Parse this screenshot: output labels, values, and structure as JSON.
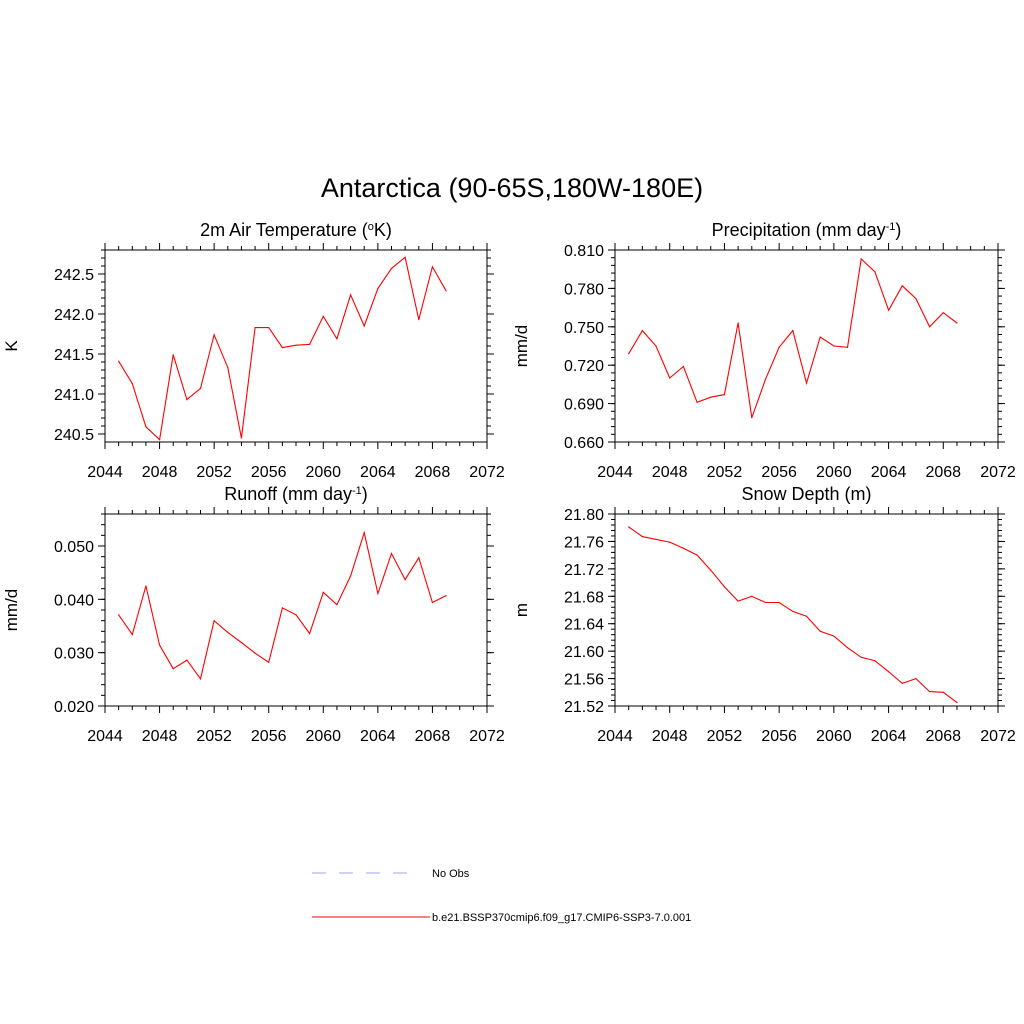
{
  "figure": {
    "title": "Antarctica (90-65S,180W-180E)"
  },
  "legend": {
    "entries": [
      {
        "label": "No Obs",
        "color": "#b4b4ff",
        "style": "dashed"
      },
      {
        "label": "b.e21.BSSP370cmip6.f09_g17.CMIP6-SSP3-7.0.001",
        "color": "#ff0000",
        "style": "solid"
      }
    ]
  },
  "chart_data": [
    {
      "type": "line",
      "title": "2m Air Temperature (oK)",
      "title_parts": {
        "pre": "2m Air Temperature (",
        "sup": "o",
        "post": "K)"
      },
      "xlabel": "",
      "ylabel": "K",
      "xlim": [
        2044,
        2072
      ],
      "ylim": [
        240.4,
        242.8
      ],
      "x_ticks": [
        2044,
        2048,
        2052,
        2056,
        2060,
        2064,
        2068,
        2072
      ],
      "y_ticks": [
        "240.5",
        "241.0",
        "241.5",
        "242.0",
        "242.5"
      ],
      "grid": false,
      "series": [
        {
          "color": "#ff0000",
          "x": [
            2045,
            2046,
            2047,
            2048,
            2049,
            2050,
            2051,
            2052,
            2053,
            2054,
            2055,
            2056,
            2057,
            2058,
            2059,
            2060,
            2061,
            2062,
            2063,
            2064,
            2065,
            2066,
            2067,
            2068,
            2069
          ],
          "values": [
            241.41,
            241.13,
            240.59,
            240.43,
            241.49,
            240.93,
            241.07,
            241.74,
            241.33,
            240.45,
            241.83,
            241.83,
            241.58,
            241.61,
            241.62,
            241.97,
            241.69,
            242.24,
            241.85,
            242.32,
            242.57,
            242.71,
            241.93,
            242.59,
            242.29
          ]
        }
      ]
    },
    {
      "type": "line",
      "title": "Precipitation (mm day-1)",
      "title_parts": {
        "pre": "Precipitation (mm day",
        "sup": "-1",
        "post": ")"
      },
      "xlabel": "",
      "ylabel": "mm/d",
      "xlim": [
        2044,
        2072
      ],
      "ylim": [
        0.66,
        0.81
      ],
      "x_ticks": [
        2044,
        2048,
        2052,
        2056,
        2060,
        2064,
        2068,
        2072
      ],
      "y_ticks": [
        "0.660",
        "0.690",
        "0.720",
        "0.750",
        "0.780",
        "0.810"
      ],
      "grid": false,
      "series": [
        {
          "color": "#ff0000",
          "x": [
            2045,
            2046,
            2047,
            2048,
            2049,
            2050,
            2051,
            2052,
            2053,
            2054,
            2055,
            2056,
            2057,
            2058,
            2059,
            2060,
            2061,
            2062,
            2063,
            2064,
            2065,
            2066,
            2067,
            2068,
            2069
          ],
          "values": [
            0.729,
            0.747,
            0.735,
            0.71,
            0.719,
            0.691,
            0.695,
            0.697,
            0.753,
            0.679,
            0.709,
            0.734,
            0.747,
            0.706,
            0.742,
            0.735,
            0.734,
            0.803,
            0.793,
            0.763,
            0.782,
            0.772,
            0.75,
            0.761,
            0.753
          ]
        }
      ]
    },
    {
      "type": "line",
      "title": "Runoff (mm day-1)",
      "title_parts": {
        "pre": "Runoff (mm day",
        "sup": "-1",
        "post": ")"
      },
      "xlabel": "",
      "ylabel": "mm/d",
      "xlim": [
        2044,
        2072
      ],
      "ylim": [
        0.02,
        0.056
      ],
      "x_ticks": [
        2044,
        2048,
        2052,
        2056,
        2060,
        2064,
        2068,
        2072
      ],
      "y_ticks": [
        "0.020",
        "0.030",
        "0.040",
        "0.050"
      ],
      "grid": false,
      "series": [
        {
          "color": "#ff0000",
          "x": [
            2045,
            2046,
            2047,
            2048,
            2049,
            2050,
            2051,
            2052,
            2053,
            2054,
            2055,
            2056,
            2057,
            2058,
            2059,
            2060,
            2061,
            2062,
            2063,
            2064,
            2065,
            2066,
            2067,
            2068,
            2069
          ],
          "values": [
            0.0371,
            0.0334,
            0.0425,
            0.0314,
            0.027,
            0.0286,
            0.0251,
            0.036,
            0.0338,
            0.0319,
            0.0299,
            0.0282,
            0.0384,
            0.0371,
            0.0336,
            0.0413,
            0.039,
            0.0444,
            0.0525,
            0.0411,
            0.0486,
            0.0437,
            0.0478,
            0.0394,
            0.0407
          ]
        }
      ]
    },
    {
      "type": "line",
      "title": "Snow Depth (m)",
      "xlabel": "",
      "ylabel": "m",
      "xlim": [
        2044,
        2072
      ],
      "ylim": [
        21.52,
        21.8
      ],
      "x_ticks": [
        2044,
        2048,
        2052,
        2056,
        2060,
        2064,
        2068,
        2072
      ],
      "y_ticks": [
        "21.52",
        "21.56",
        "21.60",
        "21.64",
        "21.68",
        "21.72",
        "21.76",
        "21.80"
      ],
      "grid": false,
      "series": [
        {
          "color": "#ff0000",
          "x": [
            2045,
            2046,
            2047,
            2048,
            2049,
            2050,
            2051,
            2052,
            2053,
            2054,
            2055,
            2056,
            2057,
            2058,
            2059,
            2060,
            2061,
            2062,
            2063,
            2064,
            2065,
            2066,
            2067,
            2068,
            2069
          ],
          "values": [
            21.781,
            21.767,
            21.763,
            21.759,
            21.75,
            21.74,
            21.718,
            21.694,
            21.673,
            21.68,
            21.671,
            21.671,
            21.658,
            21.651,
            21.629,
            21.622,
            21.605,
            21.591,
            21.586,
            21.57,
            21.553,
            21.56,
            21.541,
            21.54,
            21.525
          ]
        }
      ]
    }
  ]
}
